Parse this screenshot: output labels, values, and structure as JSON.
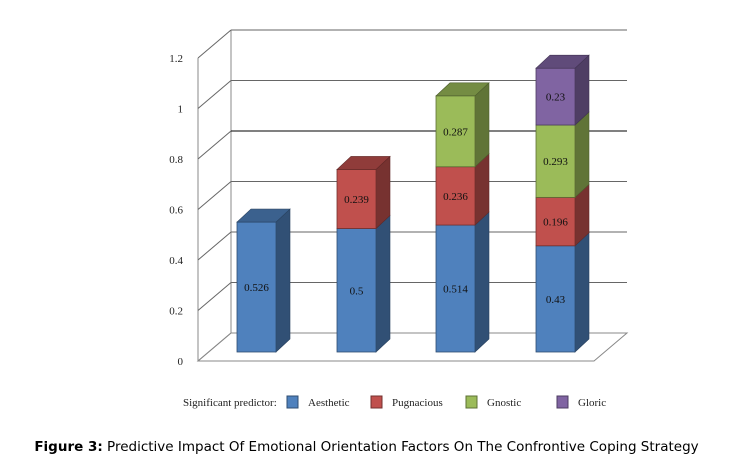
{
  "chart_data": {
    "type": "bar",
    "stacked": true,
    "three_d": true,
    "categories": [
      "",
      "",
      "",
      ""
    ],
    "series": [
      {
        "name": "Aesthetic",
        "color": "#4F81BD",
        "values": [
          0.526,
          0.5,
          0.514,
          0.43
        ]
      },
      {
        "name": "Pugnacious",
        "color": "#C0504D",
        "values": [
          null,
          0.239,
          0.236,
          0.196
        ]
      },
      {
        "name": "Gnostic",
        "color": "#9BBB59",
        "values": [
          null,
          null,
          0.287,
          0.293
        ]
      },
      {
        "name": "Gloric",
        "color": "#8064A2",
        "values": [
          null,
          null,
          null,
          0.23
        ]
      }
    ],
    "data_labels": [
      [
        "0.526",
        null,
        null,
        null
      ],
      [
        "0.5",
        "0.239",
        null,
        null
      ],
      [
        "0.514",
        "0.236",
        "0.287",
        null
      ],
      [
        "0.43",
        "0.196",
        "0.293",
        "0.23"
      ]
    ],
    "ylim": [
      0,
      1.2
    ],
    "yticks": [
      "0",
      "0.2",
      "0.4",
      "0.6",
      "0.8",
      "1",
      "1.2"
    ],
    "grid": true,
    "legend_title": "Significant predictor:",
    "legend_placement": "bottom"
  },
  "caption": {
    "label": "Figure 3:",
    "text": " Predictive Impact Of Emotional Orientation Factors On The Confrontive Coping Strategy"
  }
}
